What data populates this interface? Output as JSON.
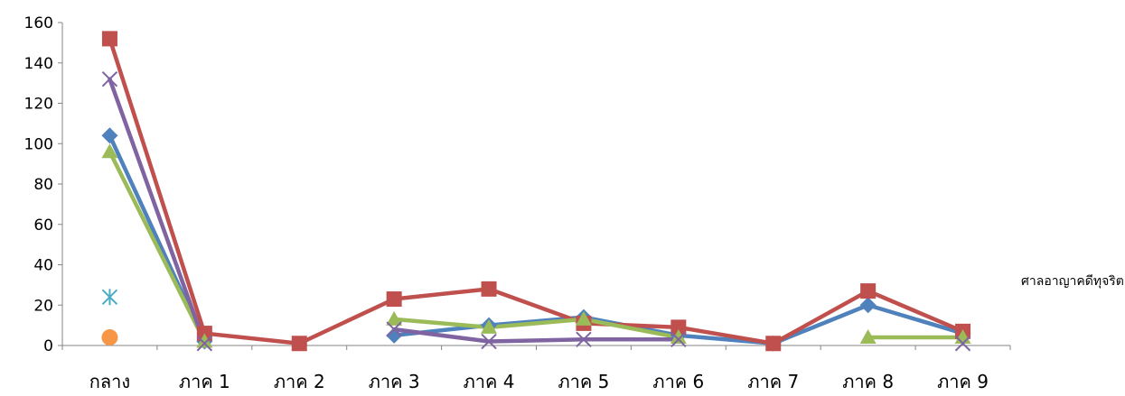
{
  "chart_data": {
    "type": "line",
    "title": "",
    "xlabel": "",
    "ylabel": "",
    "ylim": [
      0,
      160
    ],
    "yticks": [
      0,
      20,
      40,
      60,
      80,
      100,
      120,
      140,
      160
    ],
    "grid": false,
    "legend_placement": "right",
    "categories": [
      "กลาง",
      "ภาค 1",
      "ภาค 2",
      "ภาค 3",
      "ภาค 4",
      "ภาค 5",
      "ภาค 6",
      "ภาค 7",
      "ภาค 8",
      "ภาค 9"
    ],
    "series": [
      {
        "key": "blue",
        "color": "#4f81bd",
        "marker": "diamond",
        "values": [
          104,
          2,
          null,
          5,
          10,
          14,
          5,
          1,
          20,
          6
        ]
      },
      {
        "key": "red",
        "color": "#c0504d",
        "marker": "square",
        "values": [
          152,
          6,
          1,
          23,
          28,
          11,
          9,
          1,
          27,
          7
        ]
      },
      {
        "key": "green",
        "color": "#9bbb59",
        "marker": "triangle",
        "values": [
          96,
          2,
          null,
          13,
          9,
          13,
          4,
          null,
          4,
          4
        ]
      },
      {
        "key": "purple",
        "color": "#8064a2",
        "marker": "x",
        "values": [
          132,
          1,
          null,
          8,
          2,
          3,
          3,
          null,
          null,
          1
        ]
      },
      {
        "key": "teal",
        "color": "#4bacc6",
        "marker": "star",
        "values": [
          24,
          null,
          null,
          null,
          null,
          null,
          null,
          null,
          null,
          null
        ]
      },
      {
        "key": "orange",
        "color": "#f79646",
        "marker": "circle",
        "values": [
          4,
          null,
          null,
          null,
          null,
          null,
          null,
          null,
          null,
          null
        ]
      }
    ],
    "legend_entries": [
      "ศาลอาญาคดีทุจริต"
    ]
  }
}
